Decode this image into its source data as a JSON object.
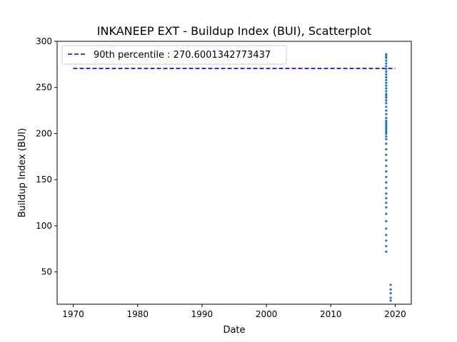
{
  "chart_data": {
    "type": "scatter",
    "title": "INKANEEP EXT - Buildup Index (BUI), Scatterplot",
    "xlabel": "Date",
    "ylabel": "Buildup Index (BUI)",
    "xlim": [
      1967.5,
      2022.5
    ],
    "ylim": [
      15,
      300
    ],
    "xticks": [
      1970,
      1980,
      1990,
      2000,
      2010,
      2020
    ],
    "yticks": [
      50,
      100,
      150,
      200,
      250,
      300
    ],
    "grid": false,
    "legend": {
      "placement": "top-left",
      "entries": [
        "90th percentile : 270.6001342773437"
      ]
    },
    "reference_line": {
      "name": "90th percentile : 270.6001342773437",
      "y": 270.6001342773437,
      "x_range": [
        1970,
        2020
      ],
      "color": "#0000cc",
      "style": "dashed"
    },
    "series": [
      {
        "marker_color": "#1f77b4",
        "points": [
          [
            2018.6,
            286
          ],
          [
            2018.6,
            284
          ],
          [
            2018.6,
            282
          ],
          [
            2018.6,
            279
          ],
          [
            2018.6,
            276
          ],
          [
            2018.6,
            273
          ],
          [
            2018.6,
            270
          ],
          [
            2018.6,
            267
          ],
          [
            2018.6,
            264
          ],
          [
            2018.6,
            261
          ],
          [
            2018.6,
            258
          ],
          [
            2018.6,
            255
          ],
          [
            2018.6,
            252
          ],
          [
            2018.6,
            249
          ],
          [
            2018.6,
            246
          ],
          [
            2018.6,
            243
          ],
          [
            2018.6,
            241
          ],
          [
            2018.6,
            239
          ],
          [
            2018.6,
            236
          ],
          [
            2018.6,
            233
          ],
          [
            2018.6,
            229
          ],
          [
            2018.6,
            225
          ],
          [
            2018.6,
            221
          ],
          [
            2018.6,
            217
          ],
          [
            2018.6,
            214
          ],
          [
            2018.6,
            212
          ],
          [
            2018.6,
            210
          ],
          [
            2018.6,
            208
          ],
          [
            2018.6,
            206
          ],
          [
            2018.6,
            204
          ],
          [
            2018.6,
            202
          ],
          [
            2018.6,
            200
          ],
          [
            2018.6,
            197
          ],
          [
            2018.6,
            194
          ],
          [
            2018.6,
            189
          ],
          [
            2018.6,
            183
          ],
          [
            2018.6,
            177
          ],
          [
            2018.6,
            171
          ],
          [
            2018.6,
            165
          ],
          [
            2018.6,
            159
          ],
          [
            2018.6,
            153
          ],
          [
            2018.6,
            147
          ],
          [
            2018.6,
            141
          ],
          [
            2018.6,
            135
          ],
          [
            2018.6,
            130
          ],
          [
            2018.6,
            125
          ],
          [
            2018.6,
            120
          ],
          [
            2018.6,
            113
          ],
          [
            2018.6,
            105
          ],
          [
            2018.6,
            97
          ],
          [
            2018.6,
            90
          ],
          [
            2018.6,
            84
          ],
          [
            2018.6,
            78
          ],
          [
            2018.6,
            72
          ],
          [
            2019.3,
            36
          ],
          [
            2019.3,
            31
          ],
          [
            2019.3,
            27
          ],
          [
            2019.3,
            22
          ],
          [
            2019.3,
            19
          ]
        ]
      }
    ]
  }
}
